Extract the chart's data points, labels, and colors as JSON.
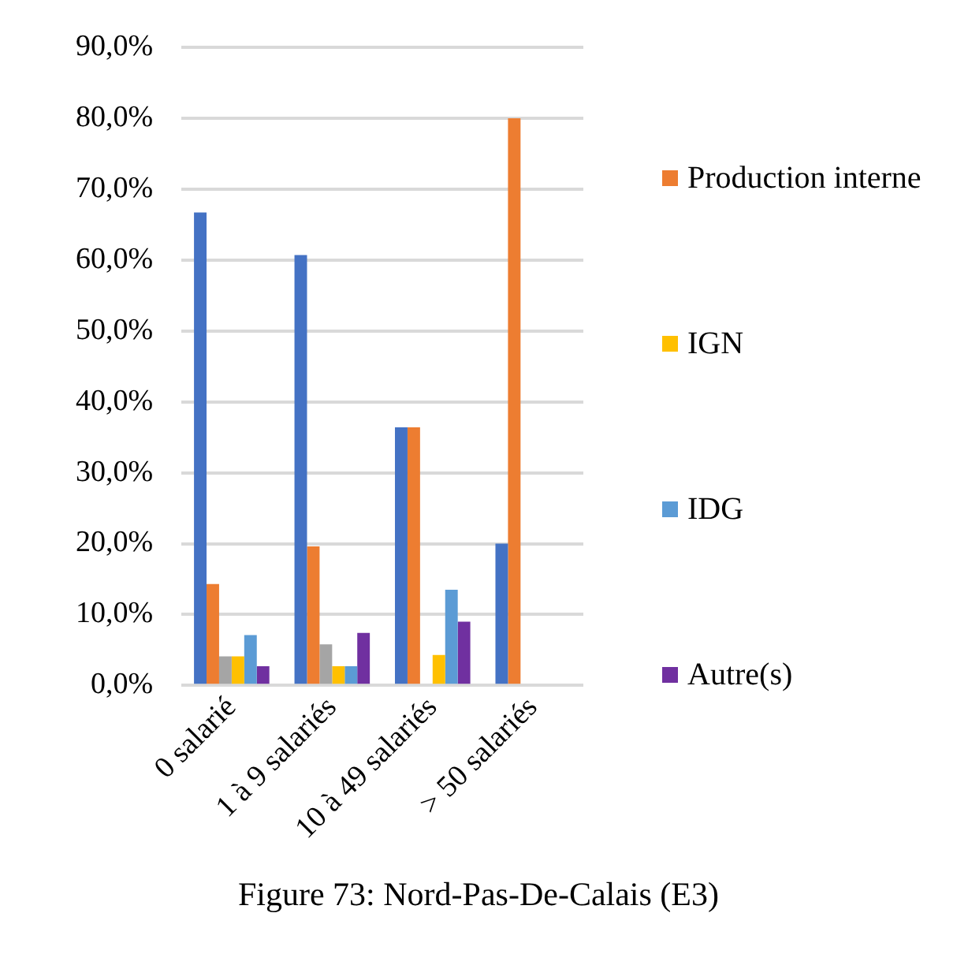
{
  "chart_data": {
    "type": "bar",
    "title": "Figure 73: Nord-Pas-De-Calais (E3)",
    "categories": [
      "0 salarié",
      "1 à 9 salariés",
      "10 à 49 salariés",
      "> 50 salariés"
    ],
    "series": [
      {
        "color": "#4472c4",
        "values": [
          66.7,
          60.7,
          36.4,
          20.0
        ]
      },
      {
        "name": "Production interne",
        "color": "#ed7d31",
        "values": [
          14.3,
          19.6,
          36.4,
          80.0
        ]
      },
      {
        "color": "#a5a5a5",
        "values": [
          4.1,
          5.8,
          0,
          0
        ]
      },
      {
        "name": "IGN",
        "color": "#ffc000",
        "values": [
          4.1,
          2.7,
          4.3,
          0
        ]
      },
      {
        "name": "IDG",
        "color": "#5b9bd5",
        "values": [
          7.1,
          2.7,
          13.5,
          0
        ]
      },
      {
        "name": "Autre(s)",
        "color": "#7030a0",
        "values": [
          2.7,
          7.4,
          9.0,
          0
        ]
      }
    ],
    "ylim": [
      0,
      90
    ],
    "yticks": [
      {
        "value": 0,
        "label": "0,0%"
      },
      {
        "value": 10,
        "label": "10,0%"
      },
      {
        "value": 20,
        "label": "20,0%"
      },
      {
        "value": 30,
        "label": "30,0%"
      },
      {
        "value": 40,
        "label": "40,0%"
      },
      {
        "value": 50,
        "label": "50,0%"
      },
      {
        "value": 60,
        "label": "60,0%"
      },
      {
        "value": 70,
        "label": "70,0%"
      },
      {
        "value": 80,
        "label": "80,0%"
      },
      {
        "value": 90,
        "label": "90,0%"
      }
    ],
    "grid": "y",
    "legend": "right"
  }
}
